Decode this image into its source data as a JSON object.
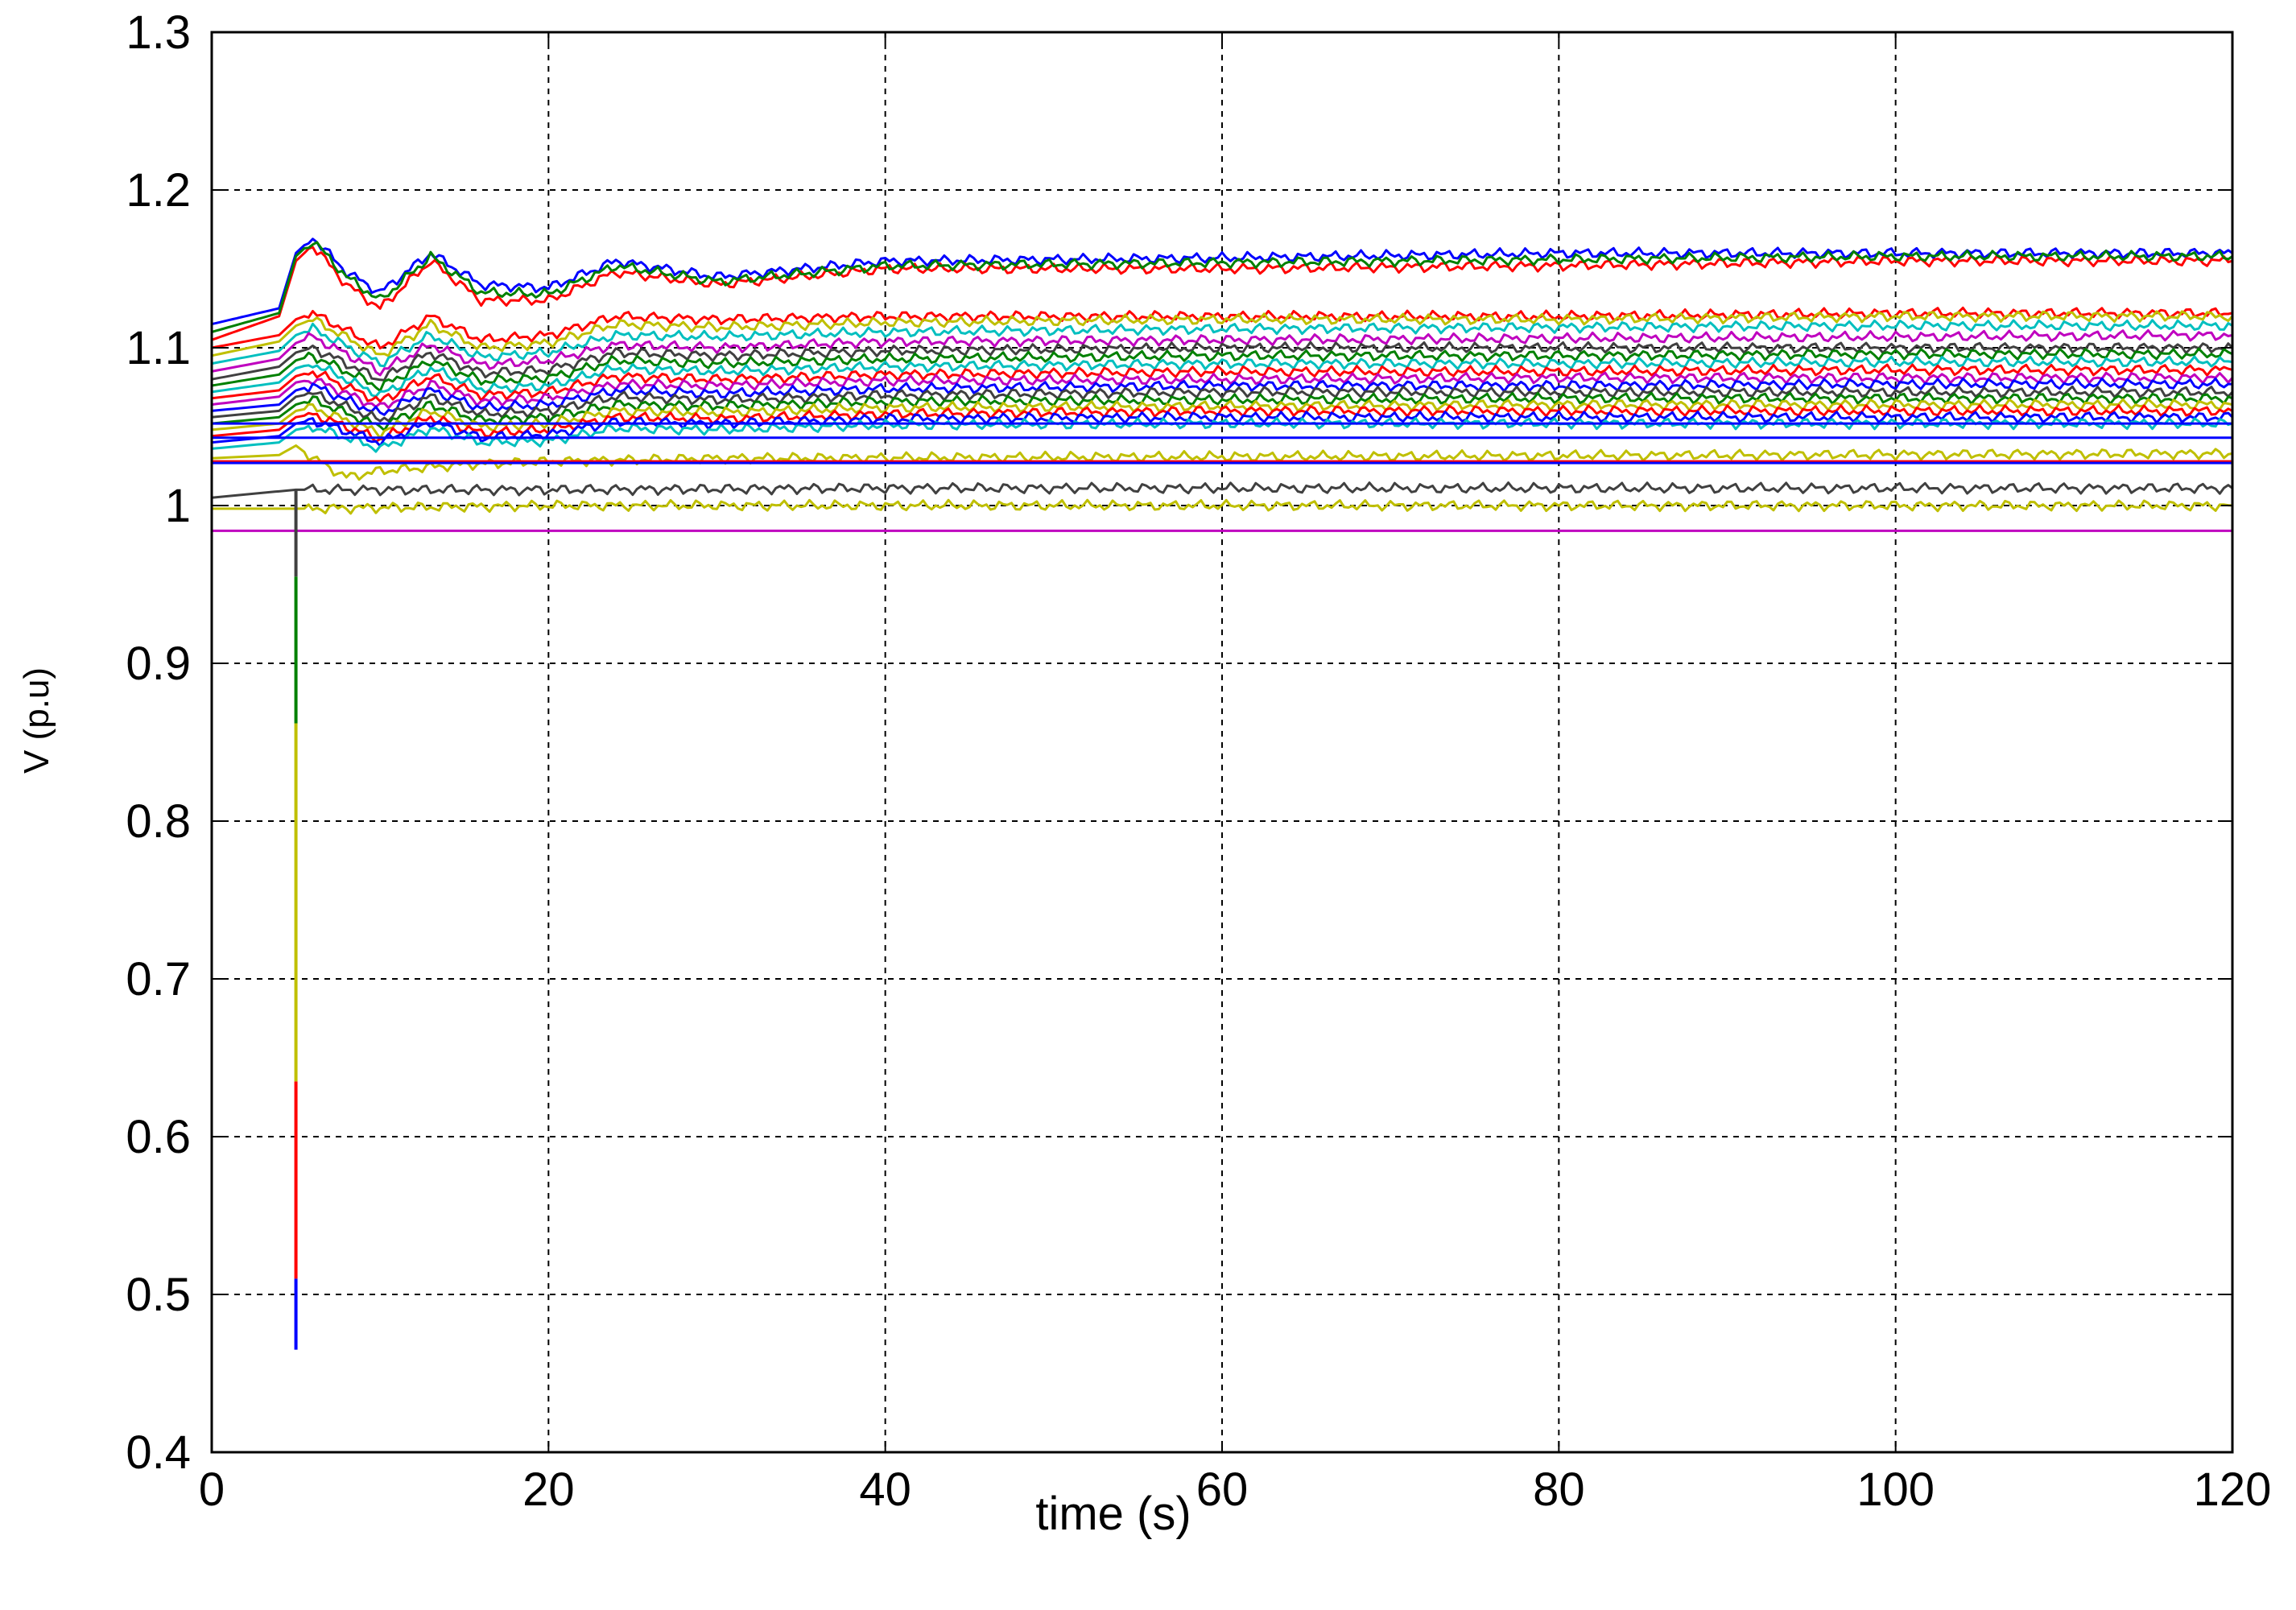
{
  "chart_data": {
    "type": "line",
    "title": "",
    "xlabel": "time (s)",
    "ylabel": "V (p.u)",
    "xlim": [
      0,
      120
    ],
    "ylim": [
      0.4,
      1.3
    ],
    "x_ticks": [
      0,
      20,
      40,
      60,
      80,
      100,
      120
    ],
    "y_ticks": [
      0.4,
      0.5,
      0.6,
      0.7,
      0.8,
      0.9,
      1,
      1.1,
      1.2,
      1.3
    ],
    "y_tick_labels": [
      "0.4",
      "0.5",
      "0.6",
      "0.7",
      "0.8",
      "0.9",
      "1",
      "1.1",
      "1.2",
      "1.3"
    ],
    "grid": true,
    "legend": "none",
    "fault_dip": [
      {
        "color": "#0000ff",
        "x": 5,
        "y_top": 0.51,
        "y_bottom": 0.465
      },
      {
        "color": "#ff0000",
        "x": 5,
        "y_top": 0.635,
        "y_bottom": 0.51
      },
      {
        "color": "#bfbf00",
        "x": 5,
        "y_top": 0.862,
        "y_bottom": 0.635
      },
      {
        "color": "#008000",
        "x": 5,
        "y_top": 0.955,
        "y_bottom": 0.862
      },
      {
        "color": "#404040",
        "x": 5,
        "y_top": 1.01,
        "y_bottom": 0.955
      }
    ],
    "series": [
      {
        "color": "#0000ff",
        "x": [
          0,
          4,
          5,
          6,
          8,
          10,
          13,
          16,
          20,
          24,
          30,
          40,
          60,
          80,
          100,
          120
        ],
        "values": [
          1.115,
          1.125,
          1.16,
          1.17,
          1.148,
          1.135,
          1.16,
          1.14,
          1.138,
          1.155,
          1.145,
          1.155,
          1.157,
          1.16,
          1.16,
          1.16
        ]
      },
      {
        "color": "#ff0000",
        "x": [
          0,
          4,
          5,
          6,
          8,
          10,
          13,
          16,
          20,
          24,
          30,
          40,
          60,
          80,
          100,
          120
        ],
        "values": [
          1.105,
          1.12,
          1.155,
          1.165,
          1.14,
          1.125,
          1.155,
          1.13,
          1.13,
          1.148,
          1.14,
          1.15,
          1.15,
          1.152,
          1.155,
          1.155
        ]
      },
      {
        "color": "#008000",
        "x": [
          0,
          4,
          5,
          6,
          8,
          10,
          13,
          16,
          20,
          24,
          30,
          40,
          60,
          80,
          100,
          120
        ],
        "values": [
          1.11,
          1.122,
          1.158,
          1.168,
          1.145,
          1.13,
          1.158,
          1.135,
          1.134,
          1.152,
          1.142,
          1.152,
          1.154,
          1.156,
          1.158,
          1.158
        ]
      },
      {
        "color": "#ff0000",
        "x": [
          0,
          4,
          5,
          6,
          10,
          13,
          16,
          20,
          24,
          30,
          40,
          60,
          80,
          100,
          120
        ],
        "values": [
          1.1,
          1.108,
          1.118,
          1.122,
          1.1,
          1.12,
          1.105,
          1.108,
          1.12,
          1.118,
          1.12,
          1.12,
          1.12,
          1.122,
          1.122
        ]
      },
      {
        "color": "#bfbf00",
        "x": [
          0,
          4,
          5,
          6,
          10,
          13,
          16,
          20,
          24,
          30,
          40,
          60,
          80,
          100,
          120
        ],
        "values": [
          1.095,
          1.104,
          1.114,
          1.118,
          1.095,
          1.115,
          1.1,
          1.103,
          1.115,
          1.113,
          1.116,
          1.118,
          1.118,
          1.12,
          1.12
        ]
      },
      {
        "color": "#00bfbf",
        "x": [
          0,
          4,
          5,
          6,
          10,
          13,
          16,
          20,
          24,
          30,
          40,
          60,
          80,
          100,
          120
        ],
        "values": [
          1.09,
          1.098,
          1.108,
          1.112,
          1.09,
          1.108,
          1.094,
          1.097,
          1.108,
          1.107,
          1.11,
          1.112,
          1.113,
          1.114,
          1.114
        ]
      },
      {
        "color": "#bf00bf",
        "x": [
          0,
          4,
          5,
          6,
          10,
          13,
          16,
          20,
          24,
          30,
          40,
          60,
          80,
          100,
          120
        ],
        "values": [
          1.085,
          1.093,
          1.103,
          1.107,
          1.085,
          1.102,
          1.089,
          1.092,
          1.102,
          1.1,
          1.104,
          1.105,
          1.106,
          1.107,
          1.108
        ]
      },
      {
        "color": "#404040",
        "x": [
          0,
          4,
          5,
          6,
          10,
          13,
          16,
          20,
          24,
          30,
          40,
          60,
          80,
          100,
          120
        ],
        "values": [
          1.08,
          1.088,
          1.097,
          1.1,
          1.08,
          1.097,
          1.084,
          1.086,
          1.097,
          1.095,
          1.098,
          1.1,
          1.1,
          1.1,
          1.1
        ]
      },
      {
        "color": "#008000",
        "x": [
          0,
          4,
          5,
          6,
          10,
          13,
          16,
          20,
          24,
          30,
          40,
          60,
          80,
          100,
          120
        ],
        "values": [
          1.076,
          1.083,
          1.092,
          1.095,
          1.075,
          1.092,
          1.079,
          1.081,
          1.092,
          1.09,
          1.093,
          1.095,
          1.095,
          1.096,
          1.096
        ]
      },
      {
        "color": "#00bfbf",
        "x": [
          0,
          4,
          5,
          6,
          10,
          13,
          16,
          20,
          24,
          30,
          40,
          60,
          80,
          100,
          120
        ],
        "values": [
          1.072,
          1.078,
          1.087,
          1.09,
          1.07,
          1.087,
          1.074,
          1.076,
          1.087,
          1.085,
          1.088,
          1.09,
          1.09,
          1.091,
          1.091
        ]
      },
      {
        "color": "#ff0000",
        "x": [
          0,
          4,
          5,
          6,
          10,
          13,
          16,
          20,
          24,
          30,
          40,
          60,
          80,
          100,
          120
        ],
        "values": [
          1.068,
          1.073,
          1.082,
          1.085,
          1.066,
          1.082,
          1.07,
          1.072,
          1.082,
          1.08,
          1.083,
          1.085,
          1.085,
          1.086,
          1.086
        ]
      },
      {
        "color": "#bf00bf",
        "x": [
          0,
          4,
          5,
          6,
          10,
          13,
          16,
          20,
          24,
          30,
          40,
          60,
          80,
          100,
          120
        ],
        "values": [
          1.064,
          1.069,
          1.078,
          1.08,
          1.062,
          1.077,
          1.066,
          1.068,
          1.077,
          1.076,
          1.079,
          1.08,
          1.081,
          1.081,
          1.081
        ]
      },
      {
        "color": "#0000ff",
        "x": [
          0,
          4,
          5,
          6,
          10,
          13,
          16,
          20,
          24,
          30,
          40,
          60,
          80,
          100,
          120
        ],
        "values": [
          1.06,
          1.064,
          1.073,
          1.076,
          1.058,
          1.073,
          1.062,
          1.064,
          1.073,
          1.071,
          1.074,
          1.076,
          1.076,
          1.077,
          1.077
        ]
      },
      {
        "color": "#404040",
        "x": [
          0,
          4,
          5,
          6,
          10,
          13,
          16,
          20,
          24,
          30,
          40,
          60,
          80,
          100,
          120
        ],
        "values": [
          1.056,
          1.06,
          1.069,
          1.071,
          1.054,
          1.069,
          1.058,
          1.06,
          1.069,
          1.067,
          1.07,
          1.072,
          1.072,
          1.072,
          1.072
        ]
      },
      {
        "color": "#008000",
        "x": [
          0,
          4,
          5,
          6,
          10,
          13,
          16,
          20,
          24,
          30,
          40,
          60,
          80,
          100,
          120
        ],
        "values": [
          1.052,
          1.056,
          1.064,
          1.067,
          1.05,
          1.064,
          1.054,
          1.056,
          1.064,
          1.063,
          1.066,
          1.067,
          1.068,
          1.068,
          1.068
        ]
      },
      {
        "color": "#bfbf00",
        "x": [
          0,
          4,
          5,
          6,
          10,
          13,
          16,
          20,
          24,
          30,
          40,
          60,
          80,
          100,
          120
        ],
        "values": [
          1.048,
          1.052,
          1.06,
          1.062,
          1.046,
          1.06,
          1.05,
          1.052,
          1.06,
          1.059,
          1.062,
          1.063,
          1.064,
          1.064,
          1.064
        ]
      },
      {
        "color": "#ff0000",
        "x": [
          0,
          4,
          5,
          6,
          10,
          13,
          16,
          20,
          24,
          30,
          40,
          60,
          80,
          100,
          120
        ],
        "values": [
          1.044,
          1.048,
          1.056,
          1.058,
          1.042,
          1.056,
          1.046,
          1.048,
          1.056,
          1.055,
          1.058,
          1.06,
          1.06,
          1.06,
          1.06
        ]
      },
      {
        "color": "#0000ff",
        "x": [
          0,
          4,
          5,
          6,
          10,
          13,
          16,
          20,
          24,
          30,
          40,
          60,
          80,
          100,
          120
        ],
        "values": [
          1.04,
          1.044,
          1.052,
          1.054,
          1.04,
          1.053,
          1.043,
          1.045,
          1.053,
          1.052,
          1.055,
          1.056,
          1.056,
          1.056,
          1.056
        ]
      },
      {
        "color": "#00bfbf",
        "x": [
          0,
          4,
          5,
          6,
          10,
          13,
          16,
          20,
          24,
          30,
          40,
          60,
          80,
          100,
          120
        ],
        "values": [
          1.036,
          1.04,
          1.048,
          1.05,
          1.036,
          1.049,
          1.04,
          1.041,
          1.049,
          1.048,
          1.051,
          1.052,
          1.052,
          1.052,
          1.052
        ]
      },
      {
        "color": "#0000ff",
        "x": [
          0,
          5,
          120
        ],
        "values": [
          1.052,
          1.052,
          1.052
        ]
      },
      {
        "color": "#0000ff",
        "x": [
          0,
          5,
          120
        ],
        "values": [
          1.043,
          1.043,
          1.043
        ]
      },
      {
        "color": "#bfbf00",
        "x": [
          0,
          4,
          5,
          6,
          8,
          10,
          15,
          20,
          30,
          120
        ],
        "values": [
          1.03,
          1.032,
          1.038,
          1.03,
          1.018,
          1.022,
          1.026,
          1.028,
          1.03,
          1.033
        ]
      },
      {
        "color": "#ff0000",
        "x": [
          0,
          5,
          120
        ],
        "values": [
          1.028,
          1.028,
          1.028
        ]
      },
      {
        "color": "#0000ff",
        "x": [
          0,
          5,
          120
        ],
        "values": [
          1.027,
          1.027,
          1.027
        ]
      },
      {
        "color": "#404040",
        "x": [
          0,
          5,
          20,
          40,
          120
        ],
        "values": [
          1.005,
          1.01,
          1.01,
          1.011,
          1.011
        ]
      },
      {
        "color": "#bfbf00",
        "x": [
          0,
          5,
          20,
          60,
          120
        ],
        "values": [
          0.998,
          0.998,
          1.0,
          1.0,
          1.0
        ]
      },
      {
        "color": "#bf00bf",
        "x": [
          0,
          120
        ],
        "values": [
          0.984,
          0.984
        ]
      }
    ]
  }
}
